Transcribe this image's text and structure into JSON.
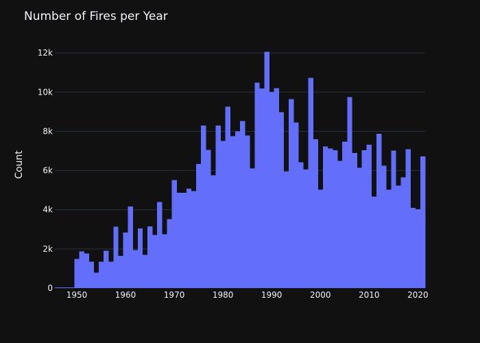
{
  "chart_data": {
    "type": "bar",
    "title": "Number of Fires per Year",
    "xlabel": "",
    "ylabel": "Count",
    "bar_color": "#636efa",
    "background": "#111111",
    "grid_color": "#283442",
    "text_color": "#f2f5fa",
    "grid": true,
    "xlim": [
      1945.5,
      2021.5
    ],
    "ylim": [
      0,
      12600
    ],
    "x_ticks": [
      1950,
      1960,
      1970,
      1980,
      1990,
      2000,
      2010,
      2020
    ],
    "x_tick_labels": [
      "1950",
      "1960",
      "1970",
      "1980",
      "1990",
      "2000",
      "2010",
      "2020"
    ],
    "y_ticks": [
      0,
      2000,
      4000,
      6000,
      8000,
      10000,
      12000
    ],
    "y_tick_labels": [
      "0",
      "2k",
      "4k",
      "6k",
      "8k",
      "10k",
      "12k"
    ],
    "x": [
      1946,
      1947,
      1948,
      1949,
      1950,
      1951,
      1952,
      1953,
      1954,
      1955,
      1956,
      1957,
      1958,
      1959,
      1960,
      1961,
      1962,
      1963,
      1964,
      1965,
      1966,
      1967,
      1968,
      1969,
      1970,
      1971,
      1972,
      1973,
      1974,
      1975,
      1976,
      1977,
      1978,
      1979,
      1980,
      1981,
      1982,
      1983,
      1984,
      1985,
      1986,
      1987,
      1988,
      1989,
      1990,
      1991,
      1992,
      1993,
      1994,
      1995,
      1996,
      1997,
      1998,
      1999,
      2000,
      2001,
      2002,
      2003,
      2004,
      2005,
      2006,
      2007,
      2008,
      2009,
      2010,
      2011,
      2012,
      2013,
      2014,
      2015,
      2016,
      2017,
      2018,
      2019,
      2020,
      2021
    ],
    "values": [
      30,
      30,
      30,
      30,
      1480,
      1870,
      1760,
      1350,
      780,
      1350,
      1900,
      1350,
      3130,
      1640,
      2840,
      4170,
      1950,
      3050,
      1700,
      3150,
      2720,
      4390,
      2740,
      3520,
      5520,
      4860,
      4860,
      5070,
      4960,
      6330,
      8300,
      7060,
      5760,
      8300,
      7500,
      9260,
      7750,
      7990,
      8520,
      7780,
      6100,
      10480,
      10180,
      12050,
      10010,
      10200,
      8980,
      5950,
      9650,
      8460,
      6430,
      6060,
      10720,
      7600,
      5020,
      7220,
      7130,
      7030,
      6490,
      7470,
      9740,
      6900,
      6150,
      7040,
      7310,
      4680,
      7880,
      6240,
      5030,
      7010,
      5240,
      5650,
      7080,
      4100,
      4030,
      6720
    ]
  }
}
